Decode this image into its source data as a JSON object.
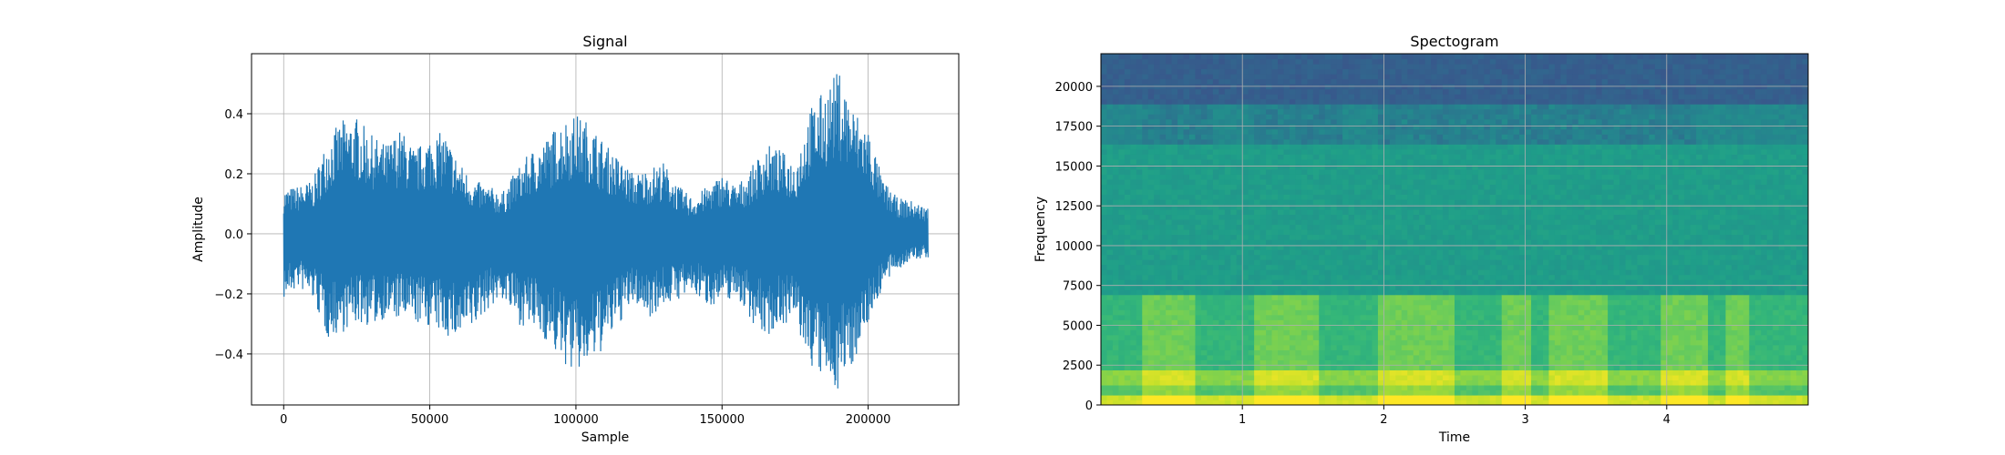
{
  "chart_data": [
    {
      "type": "line",
      "title": "Signal",
      "xlabel": "Sample",
      "ylabel": "Amplitude",
      "xlim": [
        -11000,
        231000
      ],
      "ylim": [
        -0.57,
        0.6
      ],
      "xticks": [
        0,
        50000,
        100000,
        150000,
        200000
      ],
      "yticks": [
        -0.4,
        -0.2,
        0.0,
        0.2,
        0.4
      ],
      "xtick_labels": [
        "0",
        "50000",
        "100000",
        "150000",
        "200000"
      ],
      "ytick_labels": [
        "−0.4",
        "−0.2",
        "0.0",
        "0.2",
        "0.4"
      ],
      "grid": true,
      "color": "#1f77b4",
      "series": [
        {
          "sample_count": 220500,
          "envelope": {
            "x": [
              0,
              5000,
              10000,
              15000,
              20000,
              25000,
              30000,
              35000,
              40000,
              45000,
              50000,
              55000,
              60000,
              65000,
              70000,
              75000,
              80000,
              85000,
              90000,
              95000,
              100000,
              105000,
              110000,
              115000,
              120000,
              125000,
              130000,
              135000,
              140000,
              145000,
              150000,
              155000,
              160000,
              165000,
              170000,
              175000,
              180000,
              185000,
              190000,
              195000,
              200000,
              205000,
              210000,
              215000,
              220000
            ],
            "max": [
              0.15,
              0.16,
              0.18,
              0.32,
              0.38,
              0.39,
              0.33,
              0.3,
              0.35,
              0.28,
              0.33,
              0.34,
              0.24,
              0.18,
              0.16,
              0.14,
              0.22,
              0.28,
              0.32,
              0.38,
              0.4,
              0.37,
              0.3,
              0.25,
              0.2,
              0.22,
              0.24,
              0.16,
              0.12,
              0.16,
              0.2,
              0.16,
              0.22,
              0.3,
              0.28,
              0.24,
              0.42,
              0.48,
              0.55,
              0.42,
              0.36,
              0.18,
              0.12,
              0.11,
              0.09
            ],
            "min": [
              -0.22,
              -0.18,
              -0.22,
              -0.35,
              -0.33,
              -0.3,
              -0.31,
              -0.28,
              -0.29,
              -0.3,
              -0.31,
              -0.34,
              -0.36,
              -0.32,
              -0.25,
              -0.22,
              -0.3,
              -0.32,
              -0.36,
              -0.43,
              -0.47,
              -0.44,
              -0.38,
              -0.3,
              -0.23,
              -0.28,
              -0.24,
              -0.22,
              -0.2,
              -0.24,
              -0.23,
              -0.21,
              -0.29,
              -0.35,
              -0.3,
              -0.3,
              -0.44,
              -0.5,
              -0.52,
              -0.43,
              -0.3,
              -0.18,
              -0.12,
              -0.09,
              -0.08
            ]
          }
        }
      ]
    },
    {
      "type": "heatmap",
      "title": "Spectogram",
      "xlabel": "Time",
      "ylabel": "Frequency",
      "xlim": [
        0,
        5.0
      ],
      "ylim": [
        0,
        22050
      ],
      "xticks": [
        1,
        2,
        3,
        4
      ],
      "yticks": [
        0,
        2500,
        5000,
        7500,
        10000,
        12500,
        15000,
        17500,
        20000
      ],
      "xtick_labels": [
        "1",
        "2",
        "3",
        "4"
      ],
      "ytick_labels": [
        "0",
        "2500",
        "5000",
        "7500",
        "10000",
        "12500",
        "15000",
        "17500",
        "20000"
      ],
      "grid": true,
      "colormap": "viridis",
      "intensity_profile": {
        "frequency_bands": [
          {
            "from": 0,
            "to": 600,
            "level": 0.93
          },
          {
            "from": 600,
            "to": 1300,
            "level": 0.72
          },
          {
            "from": 1300,
            "to": 2300,
            "level": 0.82
          },
          {
            "from": 2300,
            "to": 7000,
            "level": 0.66
          },
          {
            "from": 7000,
            "to": 16500,
            "level": 0.55
          },
          {
            "from": 16500,
            "to": 18900,
            "level": 0.47
          },
          {
            "from": 18900,
            "to": 22050,
            "level": 0.3
          }
        ],
        "voiced_segments": [
          [
            0.3,
            0.65
          ],
          [
            1.1,
            1.55
          ],
          [
            1.95,
            2.5
          ],
          [
            2.85,
            3.05
          ],
          [
            3.15,
            3.6
          ],
          [
            3.95,
            4.3
          ],
          [
            4.4,
            4.6
          ]
        ],
        "quiet_band_segments": [
          [
            0.3,
            0.8
          ],
          [
            1.1,
            1.7
          ],
          [
            1.95,
            4.2
          ]
        ]
      }
    }
  ]
}
